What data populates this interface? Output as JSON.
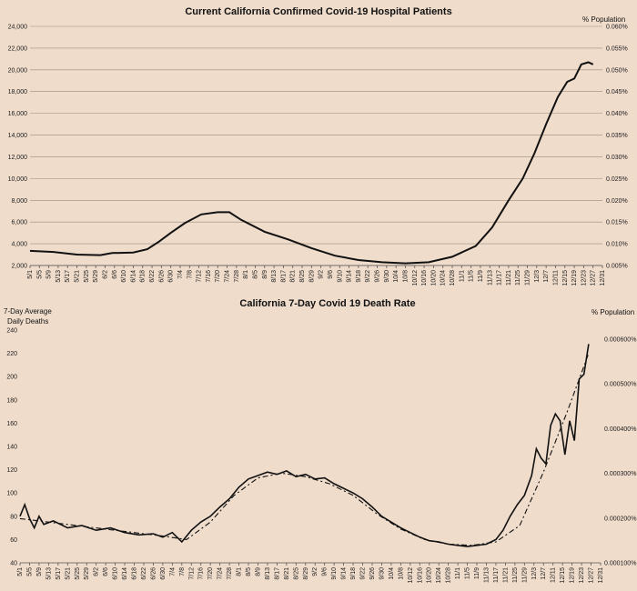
{
  "chart_data": [
    {
      "type": "line",
      "title": "Current California Confirmed Covid-19 Hospital Patients",
      "right_axis_title": "% Population",
      "ylim": [
        2000,
        24000
      ],
      "y_ticks": [
        "2,000",
        "4,000",
        "6,000",
        "8,000",
        "10,000",
        "12,000",
        "14,000",
        "16,000",
        "18,000",
        "20,000",
        "22,000",
        "24,000"
      ],
      "y2_ticks": [
        "0.005%",
        "0.010%",
        "0.015%",
        "0.020%",
        "0.025%",
        "0.030%",
        "0.035%",
        "0.040%",
        "0.045%",
        "0.050%",
        "0.055%",
        "0.060%"
      ],
      "grid": true,
      "x_labels": [
        "5/1",
        "5/5",
        "5/9",
        "5/13",
        "5/17",
        "5/21",
        "5/25",
        "5/29",
        "6/2",
        "6/6",
        "6/10",
        "6/14",
        "6/18",
        "6/22",
        "6/26",
        "6/30",
        "7/4",
        "7/8",
        "7/12",
        "7/16",
        "7/20",
        "7/24",
        "7/28",
        "8/1",
        "8/5",
        "8/9",
        "8/13",
        "8/17",
        "8/21",
        "8/25",
        "8/29",
        "9/2",
        "9/6",
        "9/10",
        "9/14",
        "9/18",
        "9/22",
        "9/26",
        "9/30",
        "10/4",
        "10/8",
        "10/12",
        "10/16",
        "10/20",
        "10/24",
        "10/28",
        "11/1",
        "11/5",
        "11/9",
        "11/13",
        "11/17",
        "11/21",
        "11/25",
        "11/29",
        "12/3",
        "12/7",
        "12/11",
        "12/15",
        "12/19",
        "12/23",
        "12/27",
        "12/31"
      ],
      "series": [
        {
          "points": [
            {
              "day": 0,
              "value": 3350
            },
            {
              "day": 10,
              "value": 3250
            },
            {
              "day": 20,
              "value": 3000
            },
            {
              "day": 30,
              "value": 2950
            },
            {
              "day": 35,
              "value": 3150
            },
            {
              "day": 44,
              "value": 3200
            },
            {
              "day": 50,
              "value": 3500
            },
            {
              "day": 55,
              "value": 4200
            },
            {
              "day": 60,
              "value": 5000
            },
            {
              "day": 66,
              "value": 5900
            },
            {
              "day": 73,
              "value": 6700
            },
            {
              "day": 80,
              "value": 6900
            },
            {
              "day": 85,
              "value": 6900
            },
            {
              "day": 90,
              "value": 6200
            },
            {
              "day": 100,
              "value": 5100
            },
            {
              "day": 110,
              "value": 4400
            },
            {
              "day": 120,
              "value": 3600
            },
            {
              "day": 130,
              "value": 2900
            },
            {
              "day": 140,
              "value": 2500
            },
            {
              "day": 150,
              "value": 2300
            },
            {
              "day": 160,
              "value": 2200
            },
            {
              "day": 170,
              "value": 2300
            },
            {
              "day": 180,
              "value": 2800
            },
            {
              "day": 190,
              "value": 3800
            },
            {
              "day": 197,
              "value": 5500
            },
            {
              "day": 204,
              "value": 8000
            },
            {
              "day": 210,
              "value": 10000
            },
            {
              "day": 215,
              "value": 12300
            },
            {
              "day": 220,
              "value": 15000
            },
            {
              "day": 225,
              "value": 17500
            },
            {
              "day": 229,
              "value": 18900
            },
            {
              "day": 232,
              "value": 19200
            },
            {
              "day": 235,
              "value": 20500
            },
            {
              "day": 238,
              "value": 20700
            },
            {
              "day": 240,
              "value": 20500
            }
          ]
        }
      ]
    },
    {
      "type": "line",
      "title": "California 7-Day Covid 19 Death Rate",
      "ylabel": "7-Day Average Daily Deaths",
      "right_axis_title": "% Population",
      "ylim": [
        40,
        240
      ],
      "y_ticks": [
        "40",
        "60",
        "80",
        "100",
        "120",
        "140",
        "160",
        "180",
        "200",
        "220",
        "240"
      ],
      "y2_ticks": [
        "0.000100%",
        "0.000200%",
        "0.000300%",
        "0.000400%",
        "0.000500%",
        "0.000600%"
      ],
      "grid": false,
      "x_labels": [
        "5/1",
        "5/5",
        "5/9",
        "5/13",
        "5/17",
        "5/21",
        "5/25",
        "5/29",
        "6/2",
        "6/6",
        "6/10",
        "6/14",
        "6/18",
        "6/22",
        "6/26",
        "6/30",
        "7/4",
        "7/8",
        "7/12",
        "7/16",
        "7/20",
        "7/24",
        "7/28",
        "8/1",
        "8/5",
        "8/9",
        "8/13",
        "8/17",
        "8/21",
        "8/25",
        "8/29",
        "9/2",
        "9/6",
        "9/10",
        "9/14",
        "9/18",
        "9/22",
        "9/26",
        "9/30",
        "10/4",
        "10/8",
        "10/12",
        "10/16",
        "10/20",
        "10/24",
        "10/28",
        "11/1",
        "11/5",
        "11/9",
        "11/13",
        "11/17",
        "11/21",
        "11/25",
        "11/29",
        "12/3",
        "12/7",
        "12/11",
        "12/15",
        "12/19",
        "12/23",
        "12/27",
        "12/31"
      ],
      "series": [
        {
          "style": "solid",
          "points": [
            {
              "day": 0,
              "value": 80
            },
            {
              "day": 2,
              "value": 90
            },
            {
              "day": 4,
              "value": 78
            },
            {
              "day": 6,
              "value": 70
            },
            {
              "day": 8,
              "value": 80
            },
            {
              "day": 10,
              "value": 73
            },
            {
              "day": 14,
              "value": 76
            },
            {
              "day": 20,
              "value": 70
            },
            {
              "day": 26,
              "value": 72
            },
            {
              "day": 32,
              "value": 68
            },
            {
              "day": 38,
              "value": 70
            },
            {
              "day": 44,
              "value": 66
            },
            {
              "day": 50,
              "value": 64
            },
            {
              "day": 56,
              "value": 65
            },
            {
              "day": 60,
              "value": 62
            },
            {
              "day": 64,
              "value": 66
            },
            {
              "day": 68,
              "value": 58
            },
            {
              "day": 72,
              "value": 68
            },
            {
              "day": 76,
              "value": 75
            },
            {
              "day": 80,
              "value": 80
            },
            {
              "day": 84,
              "value": 88
            },
            {
              "day": 88,
              "value": 95
            },
            {
              "day": 92,
              "value": 105
            },
            {
              "day": 96,
              "value": 112
            },
            {
              "day": 100,
              "value": 115
            },
            {
              "day": 104,
              "value": 118
            },
            {
              "day": 108,
              "value": 116
            },
            {
              "day": 112,
              "value": 119
            },
            {
              "day": 116,
              "value": 114
            },
            {
              "day": 120,
              "value": 116
            },
            {
              "day": 124,
              "value": 112
            },
            {
              "day": 128,
              "value": 113
            },
            {
              "day": 132,
              "value": 108
            },
            {
              "day": 136,
              "value": 104
            },
            {
              "day": 140,
              "value": 100
            },
            {
              "day": 144,
              "value": 95
            },
            {
              "day": 148,
              "value": 88
            },
            {
              "day": 152,
              "value": 80
            },
            {
              "day": 156,
              "value": 75
            },
            {
              "day": 160,
              "value": 70
            },
            {
              "day": 164,
              "value": 66
            },
            {
              "day": 168,
              "value": 62
            },
            {
              "day": 172,
              "value": 59
            },
            {
              "day": 176,
              "value": 58
            },
            {
              "day": 180,
              "value": 56
            },
            {
              "day": 184,
              "value": 55
            },
            {
              "day": 188,
              "value": 54
            },
            {
              "day": 192,
              "value": 55
            },
            {
              "day": 196,
              "value": 56
            },
            {
              "day": 200,
              "value": 60
            },
            {
              "day": 203,
              "value": 68
            },
            {
              "day": 206,
              "value": 80
            },
            {
              "day": 209,
              "value": 90
            },
            {
              "day": 212,
              "value": 98
            },
            {
              "day": 215,
              "value": 115
            },
            {
              "day": 217,
              "value": 138
            },
            {
              "day": 219,
              "value": 130
            },
            {
              "day": 221,
              "value": 125
            },
            {
              "day": 223,
              "value": 158
            },
            {
              "day": 225,
              "value": 168
            },
            {
              "day": 227,
              "value": 162
            },
            {
              "day": 229,
              "value": 133
            },
            {
              "day": 231,
              "value": 162
            },
            {
              "day": 233,
              "value": 145
            },
            {
              "day": 235,
              "value": 198
            },
            {
              "day": 237,
              "value": 202
            },
            {
              "day": 239,
              "value": 228
            }
          ]
        },
        {
          "style": "dashed",
          "points": [
            {
              "day": 0,
              "value": 78
            },
            {
              "day": 20,
              "value": 73
            },
            {
              "day": 40,
              "value": 68
            },
            {
              "day": 60,
              "value": 63
            },
            {
              "day": 70,
              "value": 60
            },
            {
              "day": 80,
              "value": 75
            },
            {
              "day": 90,
              "value": 98
            },
            {
              "day": 100,
              "value": 113
            },
            {
              "day": 110,
              "value": 117
            },
            {
              "day": 120,
              "value": 114
            },
            {
              "day": 130,
              "value": 108
            },
            {
              "day": 140,
              "value": 98
            },
            {
              "day": 150,
              "value": 82
            },
            {
              "day": 160,
              "value": 69
            },
            {
              "day": 170,
              "value": 60
            },
            {
              "day": 180,
              "value": 56
            },
            {
              "day": 190,
              "value": 55
            },
            {
              "day": 200,
              "value": 58
            },
            {
              "day": 210,
              "value": 72
            },
            {
              "day": 220,
              "value": 118
            },
            {
              "day": 230,
              "value": 170
            },
            {
              "day": 239,
              "value": 220
            }
          ]
        }
      ]
    }
  ]
}
